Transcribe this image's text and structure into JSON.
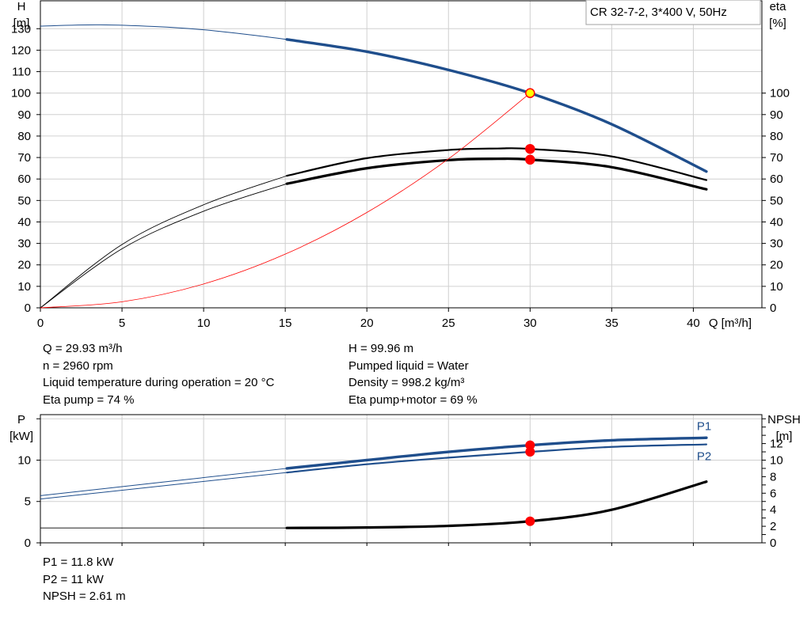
{
  "chart_data": [
    {
      "type": "line",
      "title": "CR 32-7-2, 3*400 V, 50Hz",
      "xlabel": "Q [m³/h]",
      "ylabel_left": [
        "H",
        "[m]"
      ],
      "ylabel_right": [
        "eta",
        "[%]"
      ],
      "x_ticks": [
        "0",
        "5",
        "10",
        "15",
        "20",
        "25",
        "30",
        "35",
        "40"
      ],
      "y_left_ticks": [
        "0",
        "10",
        "20",
        "30",
        "40",
        "50",
        "60",
        "70",
        "80",
        "90",
        "100",
        "110",
        "120",
        "130"
      ],
      "y_right_ticks": [
        "0",
        "10",
        "20",
        "30",
        "40",
        "50",
        "60",
        "70",
        "80",
        "90",
        "100"
      ],
      "xlim": [
        0,
        44.2
      ],
      "ylim_left": [
        0,
        143
      ],
      "ylim_right": [
        0,
        143
      ],
      "grid": true,
      "operating_range": [
        15.1,
        40.8
      ],
      "series": [
        {
          "key": "H",
          "color": "#1f4e8c",
          "axis": "left",
          "x": [
            0,
            3.5,
            7,
            10,
            13,
            15.1,
            20,
            25,
            30,
            35,
            40.8
          ],
          "y": [
            131.2,
            131.8,
            131,
            129.5,
            127,
            125,
            119.3,
            110.8,
            100,
            85.5,
            63.5
          ]
        },
        {
          "key": "eta_pump",
          "color": "#000000",
          "axis": "right",
          "x": [
            0,
            5,
            10,
            15.1,
            20,
            25,
            28,
            30,
            35,
            40.8
          ],
          "y": [
            0,
            29.5,
            48,
            61.5,
            69.7,
            73.5,
            74.2,
            74,
            70.5,
            59.5
          ]
        },
        {
          "key": "eta_pump_motor",
          "color": "#000000",
          "axis": "right",
          "x": [
            0,
            5,
            10,
            15.1,
            20,
            25,
            28,
            30,
            35,
            40.8
          ],
          "y": [
            0,
            27.5,
            45,
            57.8,
            65,
            68.8,
            69.4,
            69,
            65.5,
            55.2
          ]
        },
        {
          "key": "system",
          "color": "#ff0000",
          "axis": "left",
          "x": [
            0,
            5,
            10,
            15,
            20,
            25,
            30
          ],
          "y": [
            0,
            2.8,
            11.1,
            25,
            44.4,
            69.4,
            100
          ]
        }
      ],
      "markers": [
        {
          "x": 30,
          "y": 100,
          "fill": "#ffff00",
          "stroke": "#ff0000"
        },
        {
          "x": 30,
          "y": 74,
          "fill": "#ff0000",
          "stroke": "#ff0000"
        },
        {
          "x": 30,
          "y": 69,
          "fill": "#ff0000",
          "stroke": "#ff0000"
        }
      ]
    },
    {
      "type": "line",
      "ylabel_left": [
        "P",
        "[kW]"
      ],
      "ylabel_right": [
        "NPSH",
        "[m]"
      ],
      "y_left_ticks": [
        "0",
        "5",
        "10"
      ],
      "y_right_ticks": [
        "0",
        "2",
        "4",
        "6",
        "8",
        "10",
        "12"
      ],
      "xlim": [
        0,
        44.2
      ],
      "ylim_left": [
        0,
        15.5
      ],
      "ylim_right": [
        0,
        15.5
      ],
      "grid": true,
      "series": [
        {
          "key": "P1",
          "name": "P1",
          "color": "#1f4e8c",
          "axis": "left",
          "x": [
            0,
            15.1,
            20,
            25,
            30,
            35,
            40.8
          ],
          "y": [
            5.7,
            9.0,
            10.0,
            11.0,
            11.8,
            12.4,
            12.7
          ]
        },
        {
          "key": "P2",
          "name": "P2",
          "color": "#1f4e8c",
          "axis": "left",
          "x": [
            0,
            15.1,
            20,
            25,
            30,
            35,
            40.8
          ],
          "y": [
            5.3,
            8.5,
            9.5,
            10.3,
            11.0,
            11.6,
            11.9
          ]
        },
        {
          "key": "NPSH",
          "color": "#000000",
          "axis": "right",
          "x": [
            0,
            15.1,
            20,
            25,
            30,
            35,
            40.8
          ],
          "y": [
            1.8,
            1.8,
            1.85,
            2.05,
            2.61,
            4.0,
            7.4
          ]
        }
      ],
      "markers": [
        {
          "x": 30,
          "y": 11.8,
          "fill": "#ff0000",
          "stroke": "#ff0000"
        },
        {
          "x": 30,
          "y": 11.0,
          "fill": "#ff0000",
          "stroke": "#ff0000"
        },
        {
          "x": 30,
          "y": 2.61,
          "fill": "#ff0000",
          "stroke": "#ff0000"
        }
      ]
    }
  ],
  "info1": {
    "q": "Q = 29.93 m³/h",
    "n": "n = 2960 rpm",
    "liquid_temp": "Liquid temperature during operation = 20 °C",
    "eta_pump": "Eta pump = 74 %",
    "h": "H = 99.96 m",
    "pumped_liquid": "Pumped liquid = Water",
    "density": "Density = 998.2 kg/m³",
    "eta_pump_motor": "Eta pump+motor = 69 %"
  },
  "info2": {
    "p1": "P1 = 11.8 kW",
    "p2": "P2 = 11 kW",
    "npsh": "NPSH = 2.61 m"
  }
}
